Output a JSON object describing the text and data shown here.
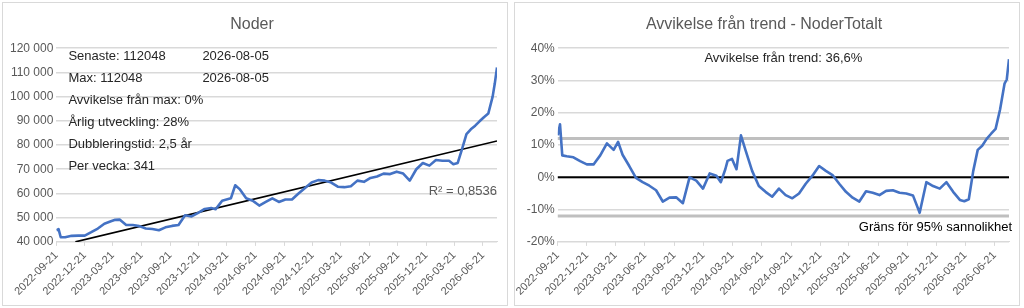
{
  "chart_data": [
    {
      "type": "line",
      "title": "Noder",
      "grid": "y",
      "marker": "none",
      "xlim": [
        "2022-09-21",
        "2026-08-05"
      ],
      "xticks": [
        "2022-09-21",
        "2022-12-21",
        "2023-03-21",
        "2023-06-21",
        "2023-09-21",
        "2023-12-21",
        "2024-03-21",
        "2024-06-21",
        "2024-09-21",
        "2024-12-21",
        "2025-03-21",
        "2025-06-21",
        "2025-09-21",
        "2025-12-21",
        "2026-03-21",
        "2026-06-21"
      ],
      "ylim": [
        40000,
        120000
      ],
      "yticks": [
        {
          "value": 40000,
          "label": "40 000"
        },
        {
          "value": 50000,
          "label": "50 000"
        },
        {
          "value": 60000,
          "label": "60 000"
        },
        {
          "value": 70000,
          "label": "70 000"
        },
        {
          "value": 80000,
          "label": "80 000"
        },
        {
          "value": 90000,
          "label": "90 000"
        },
        {
          "value": 100000,
          "label": "100 000"
        },
        {
          "value": 110000,
          "label": "110 000"
        },
        {
          "value": 120000,
          "label": "120 000"
        }
      ],
      "series": [
        {
          "color": "#4472c4",
          "x": [
            "2022-09-21",
            "2022-09-28",
            "2022-10-05",
            "2022-10-19",
            "2022-11-09",
            "2022-11-30",
            "2022-12-21",
            "2023-01-11",
            "2023-02-01",
            "2023-02-22",
            "2023-03-15",
            "2023-03-29",
            "2023-04-12",
            "2023-05-03",
            "2023-05-24",
            "2023-06-14",
            "2023-07-05",
            "2023-07-26",
            "2023-08-16",
            "2023-09-06",
            "2023-09-27",
            "2023-10-18",
            "2023-11-08",
            "2023-11-29",
            "2023-12-20",
            "2024-01-10",
            "2024-01-31",
            "2024-02-14",
            "2024-02-28",
            "2024-03-06",
            "2024-03-20",
            "2024-04-03",
            "2024-04-17",
            "2024-05-01",
            "2024-05-22",
            "2024-06-12",
            "2024-07-03",
            "2024-07-24",
            "2024-08-14",
            "2024-09-04",
            "2024-09-25",
            "2024-10-16",
            "2024-11-06",
            "2024-11-27",
            "2024-12-18",
            "2025-01-08",
            "2025-01-29",
            "2025-02-19",
            "2025-03-12",
            "2025-04-02",
            "2025-04-23",
            "2025-05-14",
            "2025-06-04",
            "2025-06-25",
            "2025-07-16",
            "2025-08-06",
            "2025-08-27",
            "2025-09-17",
            "2025-10-08",
            "2025-10-29",
            "2025-11-19",
            "2025-12-10",
            "2025-12-31",
            "2026-01-21",
            "2026-02-11",
            "2026-03-04",
            "2026-03-18",
            "2026-04-01",
            "2026-04-15",
            "2026-04-29",
            "2026-05-13",
            "2026-05-27",
            "2026-06-10",
            "2026-06-24",
            "2026-07-08",
            "2026-07-22",
            "2026-07-29",
            "2026-08-05"
          ],
          "values": [
            44800,
            45300,
            41900,
            41900,
            42500,
            42600,
            42600,
            44000,
            45500,
            47500,
            48500,
            49100,
            49200,
            47000,
            47000,
            46500,
            45500,
            45300,
            44800,
            46000,
            46600,
            47000,
            51000,
            50500,
            52000,
            53600,
            54000,
            53500,
            55800,
            57000,
            57500,
            58000,
            63400,
            61800,
            58000,
            57000,
            55000,
            56500,
            58000,
            56500,
            57500,
            57500,
            60000,
            62300,
            64500,
            65500,
            65300,
            64500,
            62800,
            62600,
            63000,
            65300,
            64800,
            66400,
            67000,
            68200,
            68000,
            69000,
            68200,
            65300,
            70000,
            72600,
            71500,
            73800,
            73500,
            73500,
            72100,
            72600,
            78400,
            84500,
            86500,
            88000,
            89800,
            91500,
            93000,
            100000,
            105500,
            112048
          ]
        },
        {
          "type": "line",
          "color": "#000000",
          "x": [
            "2022-11-21",
            "2026-08-05"
          ],
          "values": [
            40000,
            81700
          ]
        }
      ],
      "annotations": [
        "Senaste: 112048\t2026-08-05",
        "Max: 112048\t2026-08-05",
        "Avvikelse från max: 0%",
        "Årlig utveckling: 28%",
        "Dubbleringstid: 2,5 år",
        "Per vecka: 341",
        "R² = 0,8536"
      ]
    },
    {
      "type": "line",
      "title": "Avvikelse från trend - NoderTotalt",
      "grid": "y",
      "marker": "none",
      "xlim": [
        "2022-09-21",
        "2026-08-05"
      ],
      "xticks": [
        "2022-09-21",
        "2022-12-21",
        "2023-03-21",
        "2023-06-21",
        "2023-09-21",
        "2023-12-21",
        "2024-03-21",
        "2024-06-21",
        "2024-09-21",
        "2024-12-21",
        "2025-03-21",
        "2025-06-21",
        "2025-09-21",
        "2025-12-21",
        "2026-03-21",
        "2026-06-21"
      ],
      "ylim": [
        -20,
        40
      ],
      "yticks": [
        {
          "value": -20,
          "label": "-20%"
        },
        {
          "value": -10,
          "label": "-10%"
        },
        {
          "value": 0,
          "label": "0%"
        },
        {
          "value": 10,
          "label": "10%"
        },
        {
          "value": 20,
          "label": "20%"
        },
        {
          "value": 30,
          "label": "30%"
        },
        {
          "value": 40,
          "label": "40%"
        }
      ],
      "series": [
        {
          "color": "#4472c4",
          "x": [
            "2022-09-21",
            "2022-09-28",
            "2022-10-05",
            "2022-10-19",
            "2022-11-09",
            "2022-11-30",
            "2022-12-21",
            "2023-01-11",
            "2023-02-01",
            "2023-02-22",
            "2023-03-15",
            "2023-03-29",
            "2023-04-12",
            "2023-05-03",
            "2023-05-24",
            "2023-06-14",
            "2023-07-05",
            "2023-07-26",
            "2023-08-16",
            "2023-09-06",
            "2023-09-27",
            "2023-10-18",
            "2023-11-08",
            "2023-11-29",
            "2023-12-20",
            "2024-01-10",
            "2024-01-31",
            "2024-02-14",
            "2024-02-28",
            "2024-03-06",
            "2024-03-20",
            "2024-04-03",
            "2024-04-17",
            "2024-05-01",
            "2024-05-22",
            "2024-06-12",
            "2024-07-03",
            "2024-07-24",
            "2024-08-14",
            "2024-09-04",
            "2024-09-25",
            "2024-10-16",
            "2024-11-06",
            "2024-11-27",
            "2024-12-18",
            "2025-01-08",
            "2025-01-29",
            "2025-02-19",
            "2025-03-12",
            "2025-04-02",
            "2025-04-23",
            "2025-05-14",
            "2025-06-04",
            "2025-06-25",
            "2025-07-16",
            "2025-08-06",
            "2025-08-27",
            "2025-09-17",
            "2025-10-08",
            "2025-10-29",
            "2025-11-19",
            "2025-12-10",
            "2025-12-31",
            "2026-01-21",
            "2026-02-11",
            "2026-03-04",
            "2026-03-18",
            "2026-04-01",
            "2026-04-15",
            "2026-04-29",
            "2026-05-13",
            "2026-05-27",
            "2026-06-10",
            "2026-06-24",
            "2026-07-08",
            "2026-07-22",
            "2026-07-29",
            "2026-08-05"
          ],
          "values": [
            13,
            16.4,
            6.8,
            6.5,
            6.2,
            5,
            4,
            4,
            6.8,
            10.5,
            8.5,
            11,
            7,
            3.5,
            -0.2,
            -1.5,
            -2.6,
            -4,
            -7.5,
            -6.3,
            -6.2,
            -8,
            0,
            -1,
            -3.5,
            1.2,
            0.5,
            -1.5,
            2.5,
            5.1,
            5.7,
            2.5,
            13,
            8.5,
            2,
            -2.7,
            -4.5,
            -6,
            -3.5,
            -5.5,
            -6.5,
            -5,
            -2,
            0.5,
            3.5,
            2,
            0.7,
            -2,
            -4.5,
            -6.3,
            -7.5,
            -4.3,
            -4.8,
            -5.5,
            -4.2,
            -4,
            -4.8,
            -5,
            -5.6,
            -11,
            -1.5,
            -2.7,
            -3.5,
            -1.5,
            -4.5,
            -7,
            -7.4,
            -6.8,
            2,
            8.5,
            9.8,
            11.9,
            13.5,
            15,
            21,
            29,
            30.3,
            36.6
          ]
        }
      ],
      "ref_lines": [
        {
          "axis": "y",
          "value": 0,
          "color": "#000000"
        },
        {
          "axis": "y",
          "value": 12,
          "color": "#bfbfbf"
        },
        {
          "axis": "y",
          "value": -12,
          "color": "#bfbfbf",
          "label": "Gräns för 95% sannolikhet"
        }
      ],
      "annotations": [
        "Avvikelse från trend: 36,6%"
      ]
    }
  ]
}
